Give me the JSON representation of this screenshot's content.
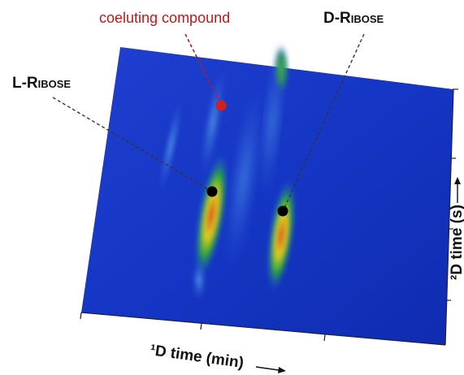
{
  "labels": {
    "coeluting": "coeluting compound",
    "d_ribose": "D-Ribose",
    "l_ribose": "L-Ribose"
  },
  "axes": {
    "x_label": "¹D time (min)",
    "y_label": "²D time (s)"
  }
}
